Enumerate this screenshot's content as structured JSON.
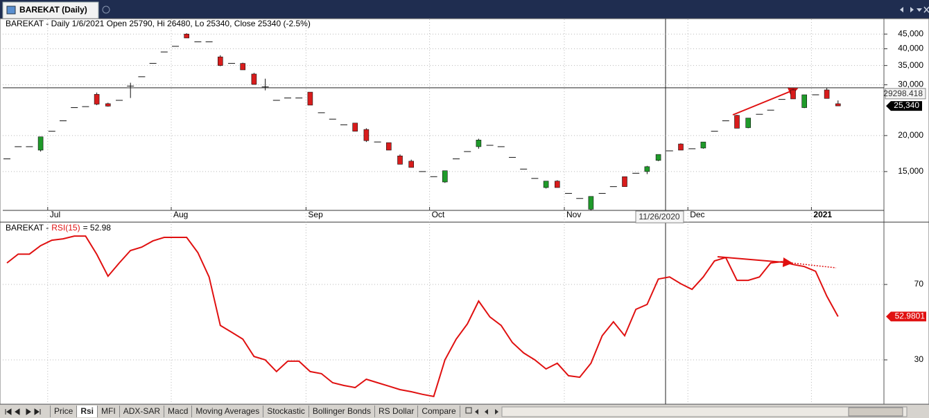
{
  "window": {
    "tab_title": "BAREKAT (Daily)"
  },
  "chart_data": [
    {
      "type": "candlestick",
      "title": "BAREKAT - Daily 1/6/2021 Open 25790, Hi 26480, Lo 25340, Close 25340 (-2.5%)",
      "categories": [
        null,
        null,
        null,
        null,
        "Jul",
        null,
        null,
        null,
        null,
        null,
        null,
        null,
        null,
        null,
        null,
        "Aug",
        null,
        null,
        null,
        null,
        null,
        null,
        null,
        null,
        null,
        null,
        null,
        "Sep",
        null,
        null,
        null,
        null,
        null,
        null,
        null,
        null,
        null,
        null,
        "Oct",
        null,
        null,
        null,
        null,
        null,
        null,
        null,
        null,
        null,
        null,
        null,
        "Nov",
        null,
        null,
        null,
        null,
        null,
        null,
        null,
        null,
        null,
        null,
        "Dec",
        null,
        null,
        null,
        null,
        null,
        null,
        null,
        null,
        null,
        null,
        "2021",
        null,
        null
      ],
      "open": [
        16600,
        18300,
        18300,
        17800,
        20700,
        22500,
        25000,
        25200,
        27800,
        25800,
        26500,
        29700,
        32000,
        35600,
        39000,
        40800,
        45000,
        42300,
        42300,
        37500,
        35600,
        35600,
        32700,
        29500,
        26500,
        27000,
        27000,
        28300,
        24000,
        22800,
        21800,
        22100,
        21000,
        19000,
        18900,
        17000,
        16300,
        15000,
        14400,
        13800,
        16600,
        17600,
        18300,
        18500,
        18300,
        16800,
        15300,
        14200,
        13200,
        13900,
        12600,
        12100,
        11100,
        12600,
        13300,
        14400,
        14800,
        15000,
        16400,
        17700,
        18700,
        18000,
        18100,
        20700,
        22500,
        23500,
        21300,
        23700,
        24500,
        26700,
        28800,
        25000,
        27700,
        28800,
        25790
      ],
      "high": [
        16600,
        18300,
        18300,
        19800,
        20700,
        22500,
        25000,
        25200,
        28200,
        26000,
        26500,
        30500,
        32000,
        35600,
        39000,
        40800,
        45300,
        42300,
        42300,
        38000,
        35600,
        35800,
        33000,
        31500,
        26500,
        27000,
        27000,
        28300,
        24000,
        22800,
        21800,
        22100,
        21200,
        19000,
        18900,
        17200,
        16500,
        15000,
        14400,
        15100,
        16600,
        17600,
        19500,
        18500,
        18300,
        16800,
        15300,
        14200,
        13900,
        14000,
        12600,
        12100,
        12300,
        12600,
        13300,
        14400,
        14800,
        15700,
        17200,
        17700,
        18800,
        18000,
        19000,
        20700,
        22500,
        23600,
        23000,
        23700,
        24500,
        26700,
        29000,
        27700,
        27700,
        29300,
        26480
      ],
      "low": [
        16600,
        18300,
        18300,
        17600,
        20700,
        22500,
        25000,
        25200,
        25500,
        25200,
        26500,
        27000,
        32000,
        35600,
        39000,
        40800,
        43600,
        42300,
        42300,
        34800,
        35600,
        33800,
        30000,
        28700,
        26500,
        27000,
        27000,
        25500,
        24000,
        22800,
        21800,
        20700,
        19000,
        19000,
        17800,
        15900,
        15500,
        15000,
        14400,
        13700,
        16600,
        17600,
        18000,
        18500,
        18300,
        16800,
        15300,
        14200,
        13100,
        13200,
        12600,
        12100,
        11000,
        12600,
        13300,
        13300,
        14800,
        14700,
        16300,
        17700,
        17800,
        18000,
        18000,
        20700,
        22500,
        21200,
        21200,
        23700,
        24500,
        26700,
        26800,
        24900,
        27700,
        26900,
        25340
      ],
      "close": [
        16600,
        18300,
        18300,
        19800,
        20700,
        22500,
        25000,
        25200,
        25700,
        25300,
        26500,
        29700,
        32000,
        35600,
        39000,
        40800,
        43600,
        42300,
        42300,
        35000,
        35600,
        33800,
        30100,
        29500,
        26500,
        27000,
        27000,
        25500,
        24000,
        22800,
        21800,
        20700,
        19200,
        19000,
        17800,
        15900,
        15500,
        15000,
        14400,
        15100,
        16600,
        17600,
        19300,
        18500,
        18300,
        16800,
        15300,
        14200,
        13900,
        13200,
        12600,
        12100,
        12300,
        12600,
        13300,
        13300,
        14800,
        15600,
        17200,
        17700,
        17800,
        18000,
        19000,
        20700,
        22500,
        21200,
        23000,
        23700,
        24500,
        26700,
        26800,
        27700,
        27700,
        26900,
        25340
      ],
      "up_color": "#1f9a2a",
      "down_color": "#d81c1c",
      "ylim": [
        11000,
        50600
      ],
      "log_scale": true,
      "yticks": [
        {
          "value": 15000,
          "label": "15,000"
        },
        {
          "value": 20000,
          "label": "20,000"
        },
        {
          "value": 30000,
          "label": "30,000"
        },
        {
          "value": 35000,
          "label": "35,000"
        },
        {
          "value": 40000,
          "label": "40,000"
        },
        {
          "value": 45000,
          "label": "45,000"
        }
      ],
      "grid": true,
      "crosshair": {
        "value": 29298.418,
        "date": "11/26/2020"
      },
      "last_value": {
        "value": 25340,
        "label": "25,340"
      }
    },
    {
      "type": "line",
      "title_prefix": "BAREKAT -",
      "title_indicator": "RSI(15)",
      "title_value": "= 52.98",
      "values": [
        81.4,
        86.1,
        86.1,
        90.6,
        93.5,
        94.2,
        95.7,
        95.7,
        86,
        74.4,
        81.4,
        88,
        89.8,
        93.1,
        95,
        95,
        95,
        86.9,
        74,
        48.3,
        44.7,
        41,
        31.8,
        30,
        23.8,
        29.3,
        29.3,
        23.8,
        22.7,
        17.9,
        16.4,
        15.3,
        19.7,
        17.9,
        16.1,
        14.2,
        13.1,
        11.7,
        10.6,
        30,
        41,
        49.1,
        61.2,
        52.8,
        48.3,
        39.2,
        33.7,
        30,
        25.2,
        28.2,
        21.6,
        20.8,
        28.2,
        42.8,
        50.2,
        42.8,
        56.8,
        59.4,
        72.9,
        74,
        70.4,
        67.4,
        74,
        82.5,
        84.3,
        72.2,
        72.2,
        74,
        81.4,
        82.1,
        80.6,
        79.5,
        77,
        63.8,
        52.9801
      ],
      "color": "#e01010",
      "ylim": [
        6.5,
        102.7
      ],
      "yticks": [
        30,
        70
      ],
      "grid": true
    }
  ],
  "tabs": [
    "Price",
    "Rsi",
    "MFI",
    "ADX-SAR",
    "Macd",
    "Moving Averages",
    "Stockastic",
    "Bollinger Bonds",
    "RS Dollar",
    "Compare"
  ],
  "active_tab": 1
}
